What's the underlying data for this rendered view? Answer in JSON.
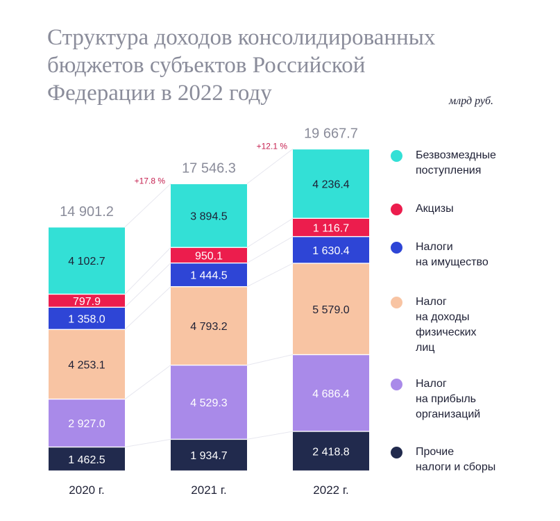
{
  "title": "Структура доходов консолидированных\nбюджетов субъектов Российской\nФедерации в 2022 году",
  "unit_label": "млрд руб.",
  "colors": {
    "bezvozmezdnye": "#33e0d6",
    "akcizy": "#ec1d4d",
    "imushchestvo": "#2e45d6",
    "ndfl": "#f8c4a3",
    "pribyl": "#a98ae9",
    "prochie": "#212a4d",
    "growth": "#c51f4f",
    "total": "#8a8c9a",
    "connector": "#e7e7ef"
  },
  "chart_data": {
    "type": "bar",
    "stacked": true,
    "unit": "млрд руб.",
    "categories": [
      "2020 г.",
      "2021 г.",
      "2022 г."
    ],
    "series": [
      {
        "key": "prochie",
        "name": "Прочие\nналоги и сборы",
        "values": [
          1462.5,
          1934.7,
          2418.8
        ],
        "labels": [
          "1 462.5",
          "1 934.7",
          "2 418.8"
        ],
        "label_color": "#ffffff"
      },
      {
        "key": "pribyl",
        "name": "Налог\nна прибыль\nорганизаций",
        "values": [
          2927.0,
          4529.3,
          4686.4
        ],
        "labels": [
          "2 927.0",
          "4 529.3",
          "4 686.4"
        ],
        "label_color": "#ffffff"
      },
      {
        "key": "ndfl",
        "name": "Налог\nна доходы\nфизических\nлиц",
        "values": [
          4253.1,
          4793.2,
          5579.0
        ],
        "labels": [
          "4 253.1",
          "4 793.2",
          "5 579.0"
        ],
        "label_color": "#1e2035"
      },
      {
        "key": "imushchestvo",
        "name": "Налоги\nна имущество",
        "values": [
          1358.0,
          1444.5,
          1630.4
        ],
        "labels": [
          "1 358.0",
          "1 444.5",
          "1 630.4"
        ],
        "label_color": "#ffffff"
      },
      {
        "key": "akcizy",
        "name": "Акцизы",
        "values": [
          797.9,
          950.1,
          1116.7
        ],
        "labels": [
          "797.9",
          "950.1",
          "1 116.7"
        ],
        "label_color": "#ffffff"
      },
      {
        "key": "bezvozmezdnye",
        "name": "Безвозмездные\nпоступления",
        "values": [
          4102.7,
          3894.5,
          4236.4
        ],
        "labels": [
          "4 102.7",
          "3 894.5",
          "4 236.4"
        ],
        "label_color": "#1e2035"
      }
    ],
    "totals": [
      14901.2,
      17546.3,
      19667.7
    ],
    "total_labels": [
      "14 901.2",
      "17 546.3",
      "19 667.7"
    ],
    "growth_labels": [
      "",
      "+17.8 %",
      "+12.1 %"
    ],
    "legend_order": [
      "bezvozmezdnye",
      "akcizy",
      "imushchestvo",
      "ndfl",
      "pribyl",
      "prochie"
    ]
  }
}
